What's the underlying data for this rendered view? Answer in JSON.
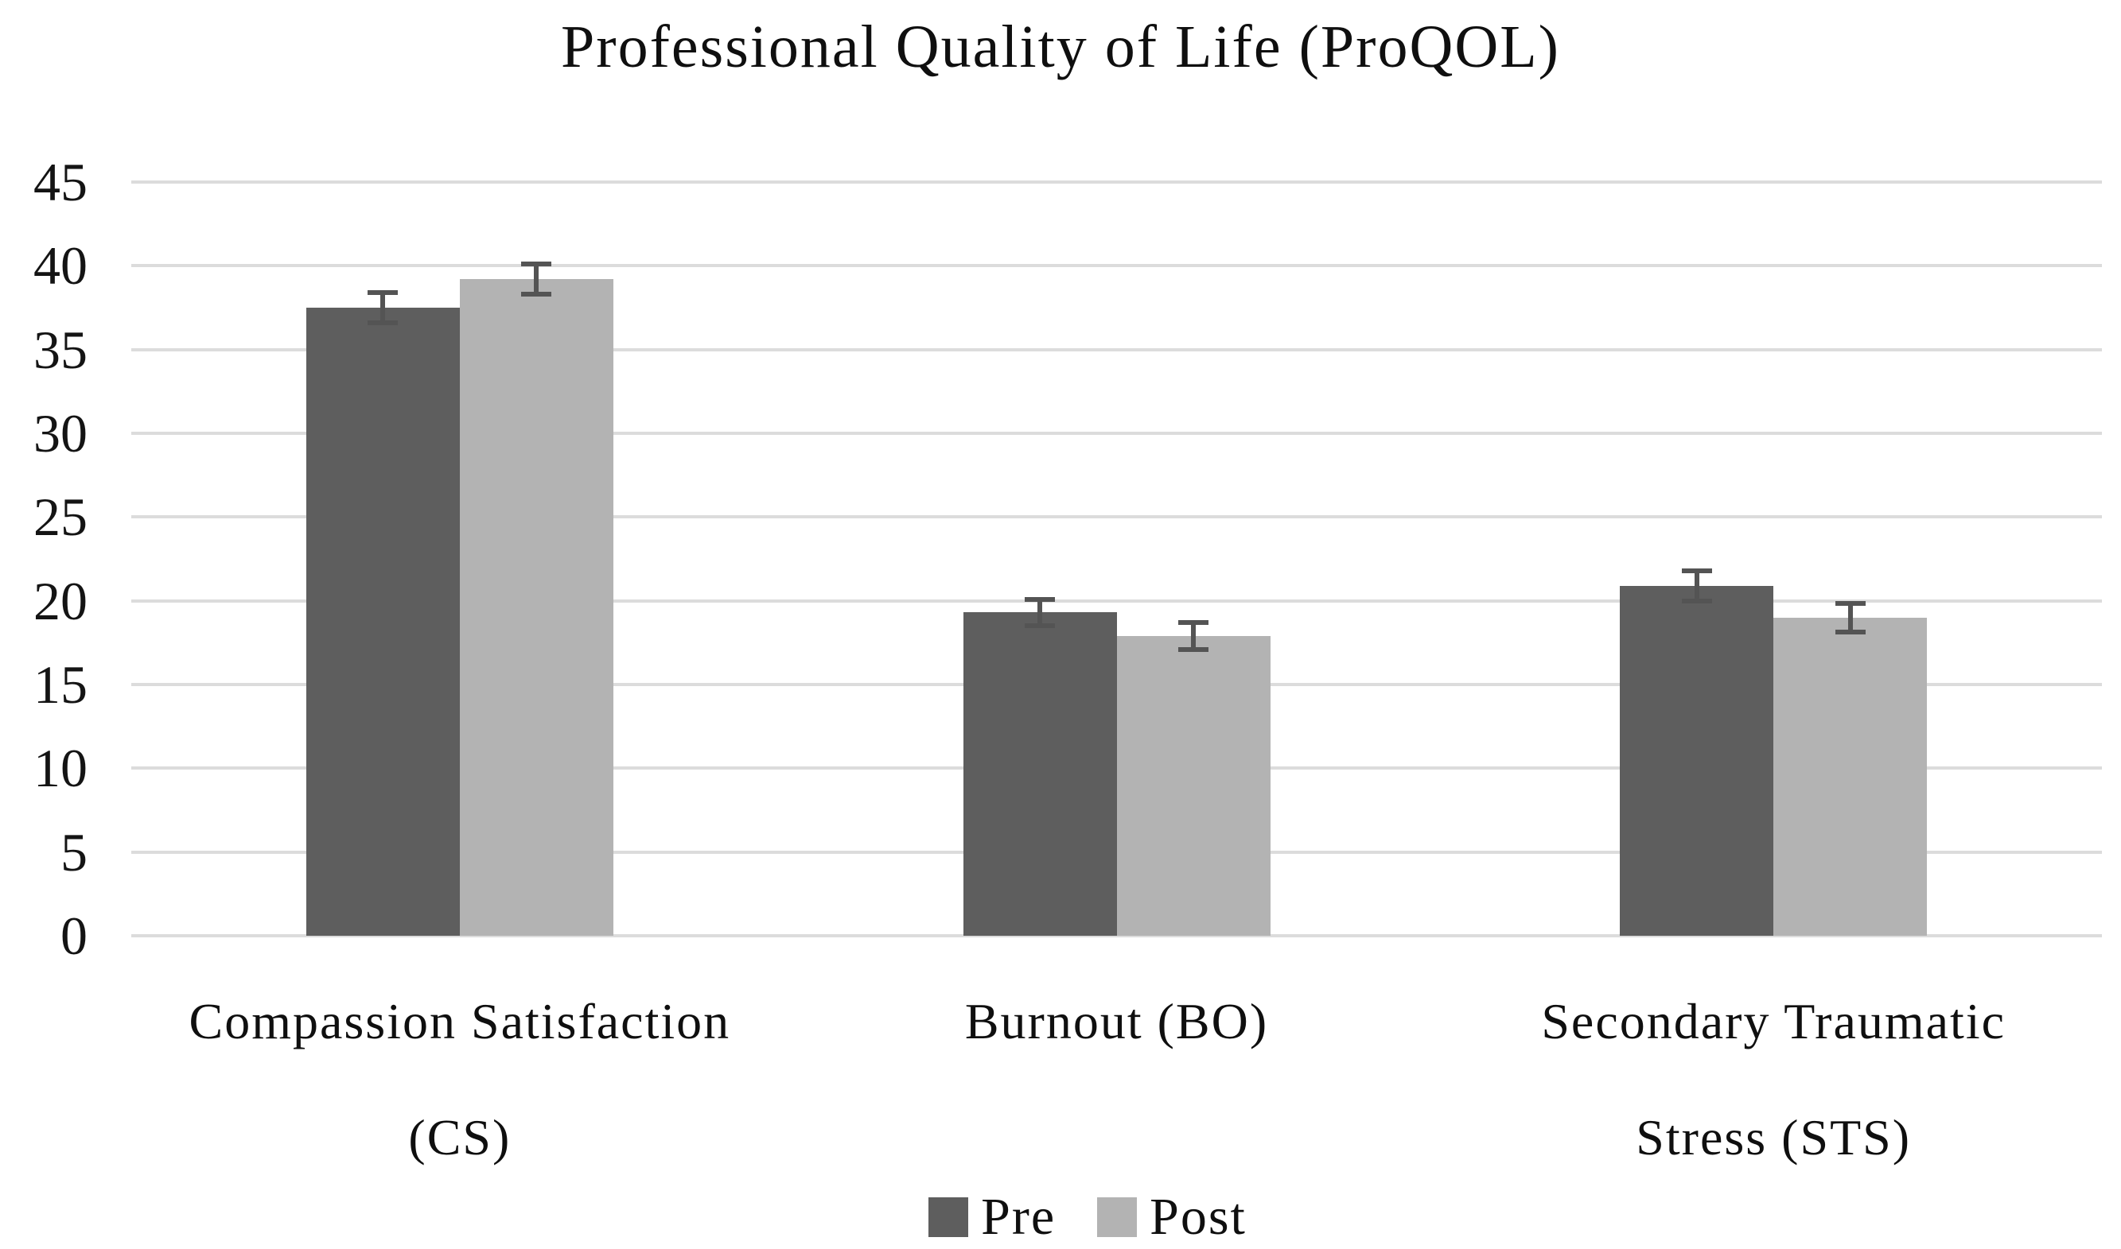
{
  "chart_data": {
    "type": "bar",
    "title": "Professional Quality of Life (ProQOL)",
    "categories": [
      "Compassion Satisfaction (CS)",
      "Burnout (BO)",
      "Secondary Traumatic Stress (STS)"
    ],
    "category_lines": [
      [
        "Compassion Satisfaction",
        "(CS)"
      ],
      [
        "Burnout (BO)"
      ],
      [
        "Secondary Traumatic",
        "Stress (STS)"
      ]
    ],
    "series": [
      {
        "name": "Pre",
        "color": "#5e5e5e",
        "values": [
          37.5,
          19.3,
          20.9
        ],
        "errors": [
          0.9,
          0.8,
          0.9
        ]
      },
      {
        "name": "Post",
        "color": "#b3b3b3",
        "values": [
          39.2,
          17.9,
          19.0
        ],
        "errors": [
          0.9,
          0.8,
          0.85
        ]
      }
    ],
    "ylim": [
      0,
      45
    ],
    "yticks": [
      0,
      5,
      10,
      15,
      20,
      25,
      30,
      35,
      40,
      45
    ],
    "grid": true,
    "legend_position": "bottom",
    "gridline_color": "#dcdcdc",
    "error_bar_color": "#545454",
    "text_color": "#0f0f0f"
  }
}
